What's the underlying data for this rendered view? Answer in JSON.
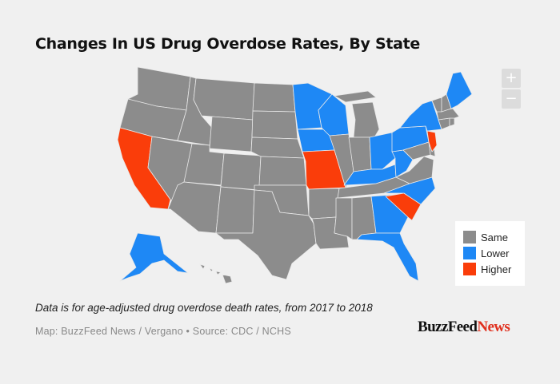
{
  "title": "Changes In US Drug Overdose Rates, By State",
  "caption": "Data is for age-adjusted drug overdose death rates, from 2017 to 2018",
  "credit": "Map: BuzzFeed News / Vergano • Source: CDC / NCHS",
  "brand": {
    "main": "BuzzFeed",
    "accent": "News"
  },
  "zoom": {
    "in": "+",
    "out": "−"
  },
  "colors": {
    "same": "#8c8c8c",
    "lower": "#1e88f5",
    "higher": "#fa3d0a",
    "border": "#e9e9e9"
  },
  "legend": [
    {
      "key": "same",
      "label": "Same"
    },
    {
      "key": "lower",
      "label": "Lower"
    },
    {
      "key": "higher",
      "label": "Higher"
    }
  ],
  "states": {
    "California": "higher",
    "Missouri": "higher",
    "South Carolina": "higher",
    "New Jersey": "higher",
    "Minnesota": "lower",
    "Wisconsin": "lower",
    "Iowa": "lower",
    "Ohio": "lower",
    "Kentucky": "lower",
    "West Virginia": "lower",
    "Pennsylvania": "lower",
    "New York": "lower",
    "Maine": "lower",
    "North Carolina": "lower",
    "Georgia": "lower",
    "Florida": "lower",
    "Alaska": "lower",
    "Washington": "same",
    "Oregon": "same",
    "Idaho": "same",
    "Nevada": "same",
    "Montana": "same",
    "Wyoming": "same",
    "Utah": "same",
    "Arizona": "same",
    "Colorado": "same",
    "New Mexico": "same",
    "North Dakota": "same",
    "South Dakota": "same",
    "Nebraska": "same",
    "Kansas": "same",
    "Oklahoma": "same",
    "Texas": "same",
    "Arkansas": "same",
    "Louisiana": "same",
    "Mississippi": "same",
    "Alabama": "same",
    "Tennessee": "same",
    "Illinois": "same",
    "Indiana": "same",
    "Michigan": "same",
    "Virginia": "same",
    "Maryland": "same",
    "Delaware": "same",
    "Connecticut": "same",
    "Rhode Island": "same",
    "Massachusetts": "same",
    "Vermont": "same",
    "New Hampshire": "same",
    "Hawaii": "same"
  }
}
